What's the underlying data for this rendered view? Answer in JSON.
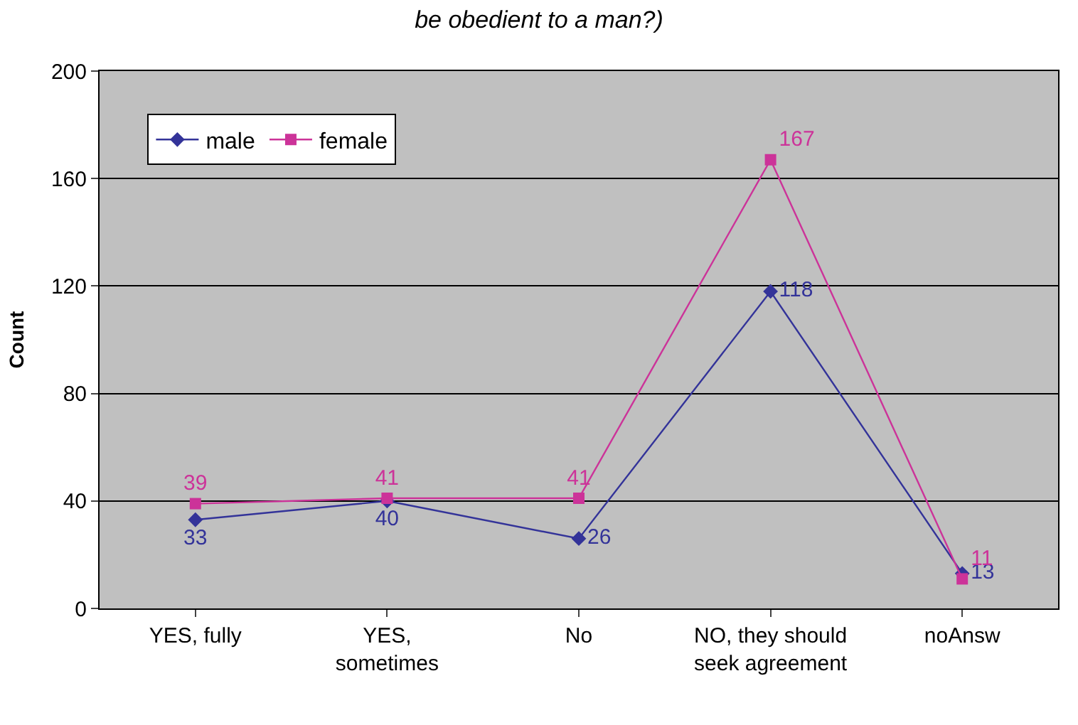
{
  "chart_data": {
    "type": "line",
    "title": "be obedient to a man?)",
    "ylabel": "Count",
    "categories": [
      "YES, fully",
      "YES,\nsometimes",
      "No",
      "NO, they should\nseek agreement",
      "noAnsw"
    ],
    "series": [
      {
        "name": "male",
        "color": "#333399",
        "marker": "diamond",
        "values": [
          33,
          40,
          26,
          118,
          13
        ]
      },
      {
        "name": "female",
        "color": "#cc3399",
        "marker": "square",
        "values": [
          39,
          41,
          41,
          167,
          11
        ]
      }
    ],
    "ylim": [
      0,
      200
    ],
    "yticks": [
      0,
      40,
      80,
      120,
      160,
      200
    ],
    "grid": "y",
    "legend": "top left",
    "data_labels": true
  }
}
